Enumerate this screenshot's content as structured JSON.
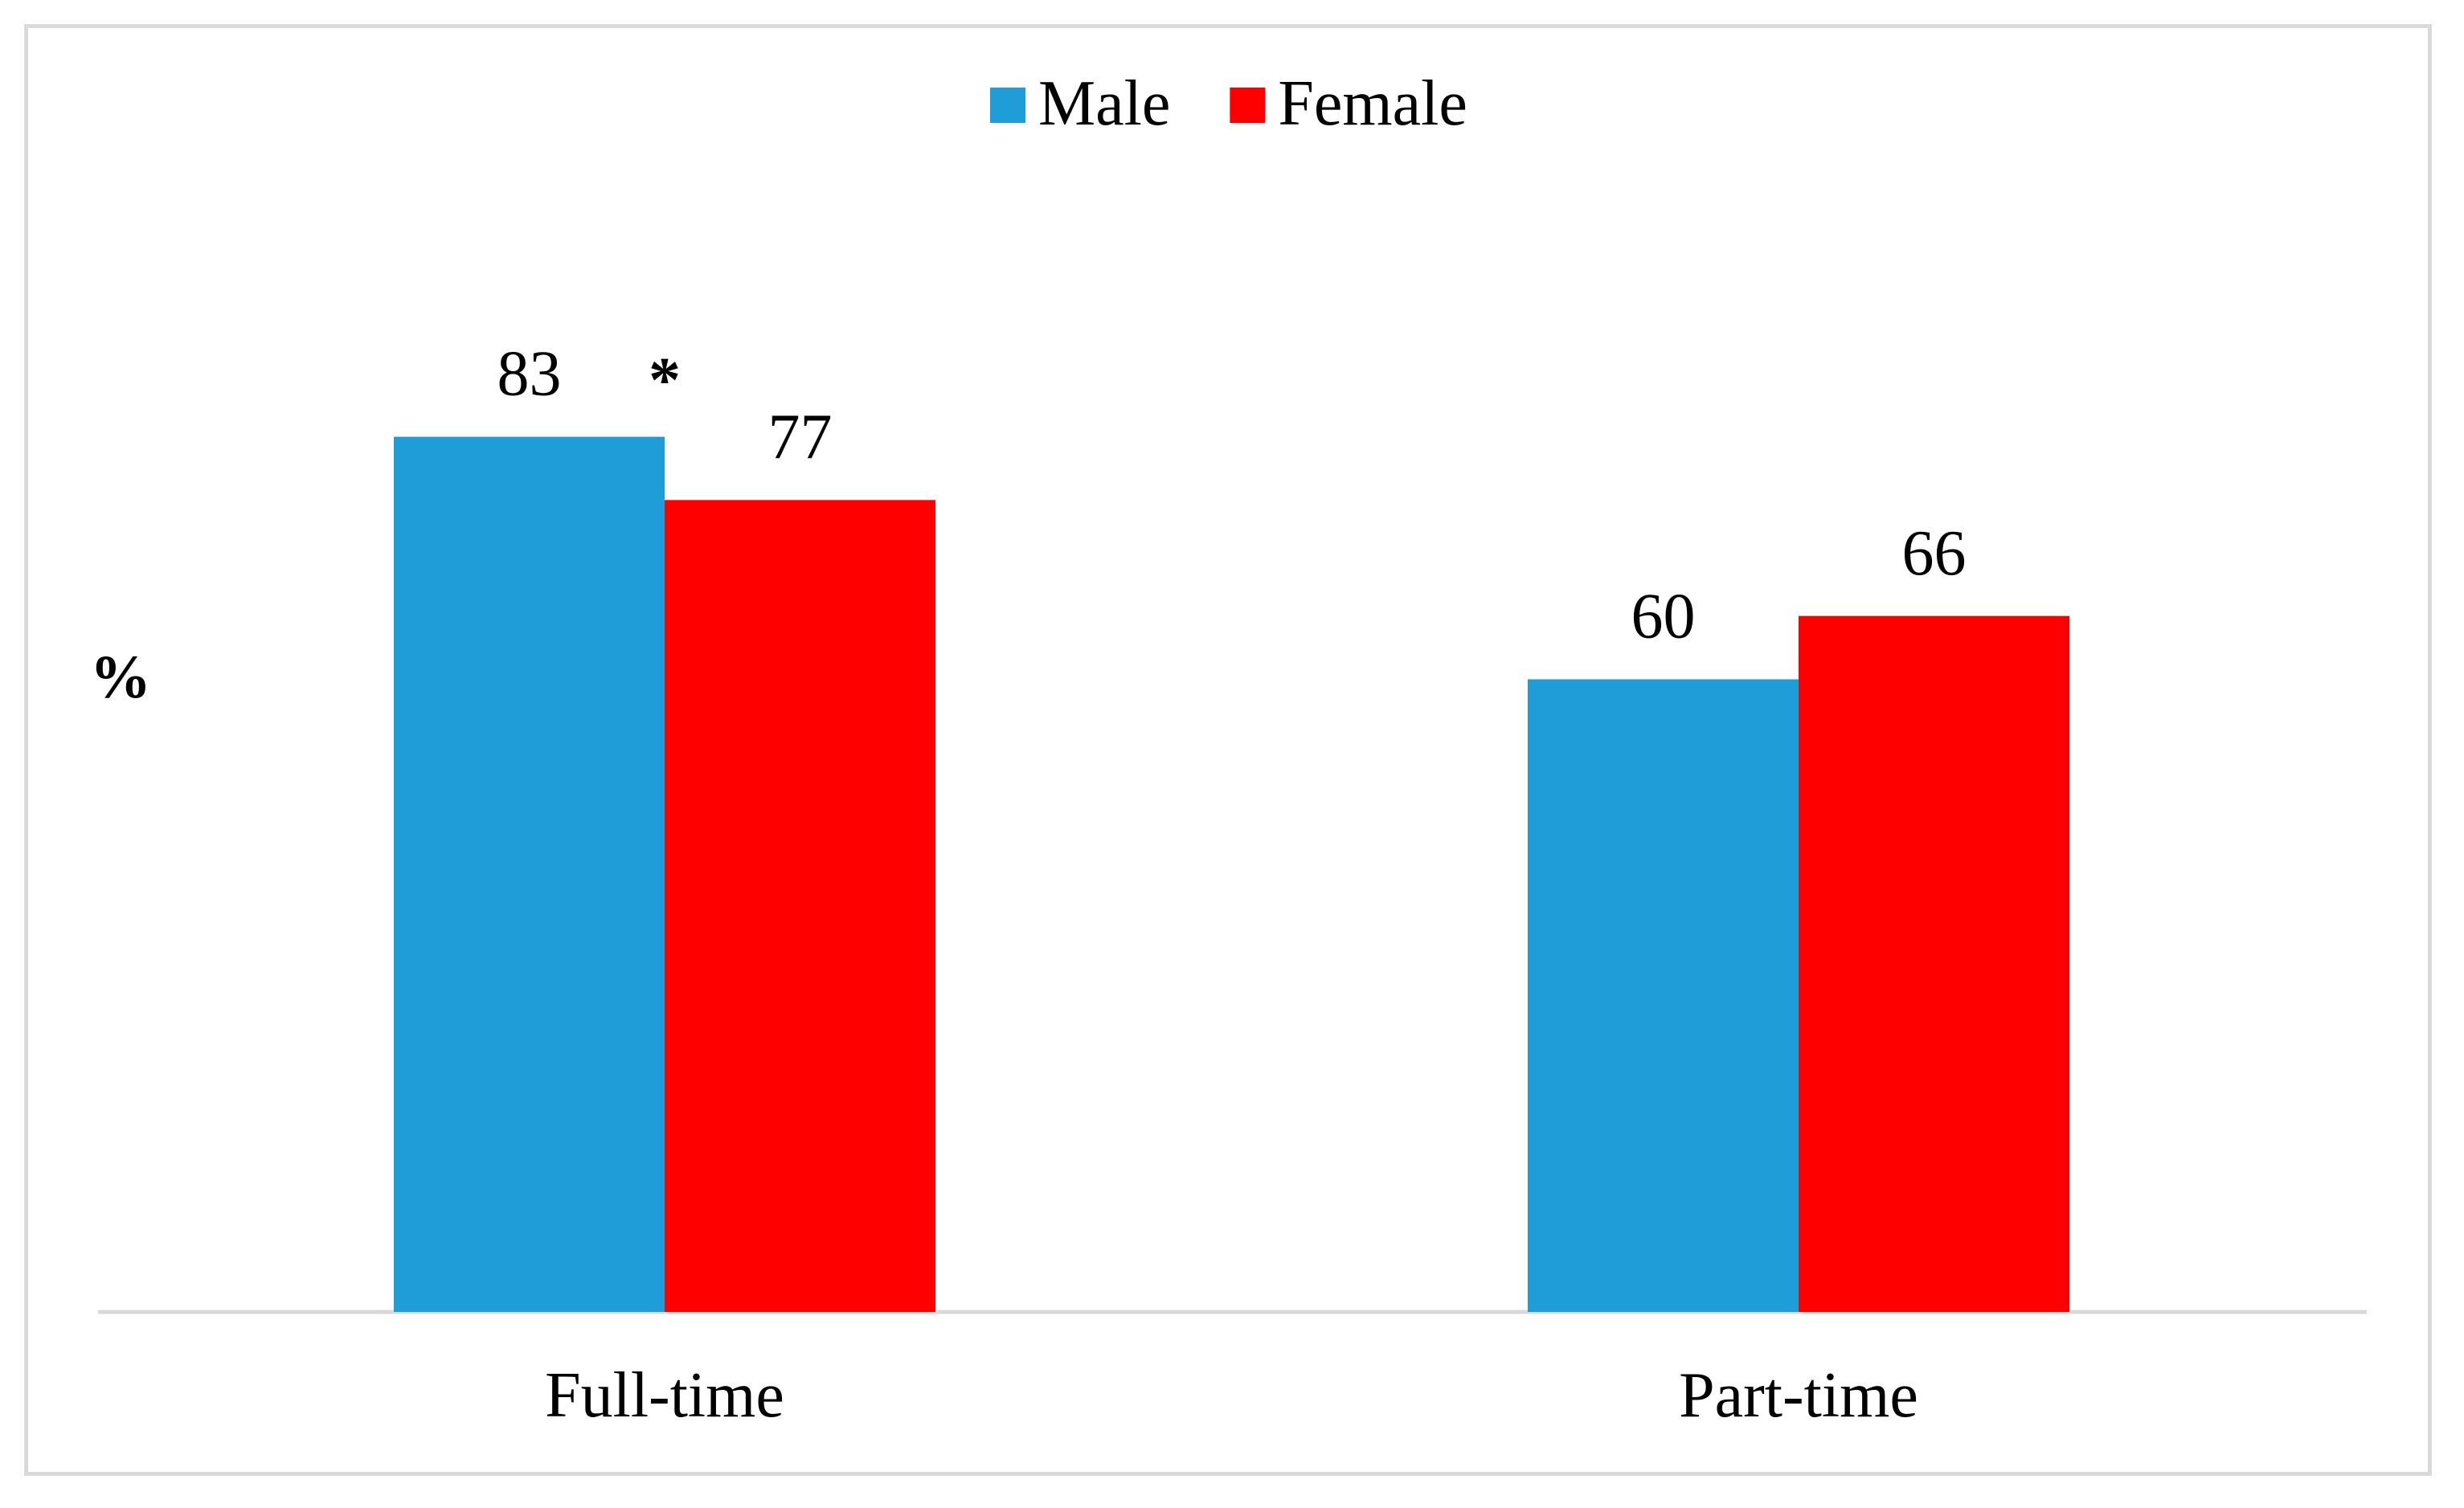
{
  "chart_data": {
    "type": "bar",
    "categories": [
      "Full-time",
      "Part-time"
    ],
    "series": [
      {
        "name": "Male",
        "values": [
          83,
          60
        ],
        "color": "#1e9dd8"
      },
      {
        "name": "Female",
        "values": [
          77,
          66
        ],
        "color": "#ff0000"
      }
    ],
    "ylabel": "%",
    "ylim": [
      0,
      100
    ],
    "grid": false,
    "legend": "top-center",
    "annotations": [
      {
        "text": "*",
        "category": "Full-time"
      }
    ]
  }
}
